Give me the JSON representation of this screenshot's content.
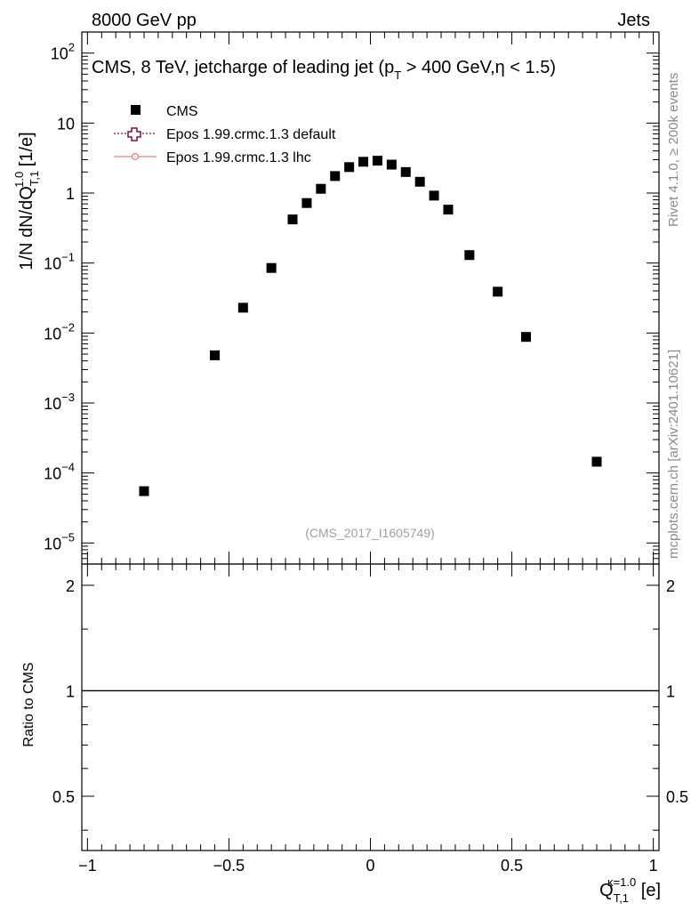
{
  "header": {
    "left": "8000 GeV pp",
    "right": "Jets"
  },
  "side_labels": {
    "top": "Rivet 4.1.0, ≥ 200k events",
    "bottom": "mcplots.cern.ch [arXiv:2401.10621]"
  },
  "chart_data": {
    "type": "scatter",
    "title_parts": {
      "a": "CMS, 8 TeV, jetcharge of leading jet (p",
      "sub": "T",
      "b": " > 400 GeV,η < 1.5)"
    },
    "ylabel_parts": {
      "a": "1/N dN/dQ",
      "sub": "T,1",
      "sup": "1.0",
      "b": " [1/e]"
    },
    "xlabel_parts": {
      "a": "Q",
      "sub": "T,1",
      "sup": "κ=1.0",
      "b": " [e]"
    },
    "ratio_ylabel": "Ratio to CMS",
    "watermark": "(CMS_2017_I1605749)",
    "legend": [
      "CMS",
      "Epos 1.99.crmc.1.3 default",
      "Epos 1.99.crmc.1.3 lhc"
    ],
    "legend_placement": "top-left",
    "xlim": [
      -1.02,
      1.02
    ],
    "ylim_main": [
      5e-06,
      200
    ],
    "ylim_ratio": [
      0.35,
      2.3
    ],
    "y_log": true,
    "x_ticks": [
      -1,
      -0.5,
      0,
      0.5,
      1
    ],
    "x_tick_labels": [
      "−1",
      "−0.5",
      "0",
      "0.5",
      "1"
    ],
    "y_ticks": [
      {
        "v": 100,
        "b": "10",
        "e": "2"
      },
      {
        "v": 10,
        "b": "10",
        "e": ""
      },
      {
        "v": 1,
        "b": "1",
        "e": ""
      },
      {
        "v": 0.1,
        "b": "10",
        "e": "−1"
      },
      {
        "v": 0.01,
        "b": "10",
        "e": "−2"
      },
      {
        "v": 0.001,
        "b": "10",
        "e": "−3"
      },
      {
        "v": 0.0001,
        "b": "10",
        "e": "−4"
      },
      {
        "v": 1e-05,
        "b": "10",
        "e": "−5"
      }
    ],
    "ratio_ticks": [
      {
        "v": 0.5,
        "t": "0.5"
      },
      {
        "v": 1,
        "t": "1"
      },
      {
        "v": 2,
        "t": "2"
      }
    ],
    "series": [
      {
        "name": "CMS",
        "x": [
          -0.8,
          -0.55,
          -0.45,
          -0.35,
          -0.275,
          -0.225,
          -0.175,
          -0.125,
          -0.075,
          -0.025,
          0.025,
          0.075,
          0.125,
          0.175,
          0.225,
          0.275,
          0.35,
          0.45,
          0.55,
          0.8
        ],
        "y": [
          5.5e-05,
          0.0048,
          0.023,
          0.085,
          0.42,
          0.72,
          1.15,
          1.75,
          2.35,
          2.8,
          2.9,
          2.55,
          2.0,
          1.45,
          0.92,
          0.58,
          0.13,
          0.039,
          0.0088,
          0.000145
        ]
      }
    ],
    "ratio_reference": 1
  }
}
